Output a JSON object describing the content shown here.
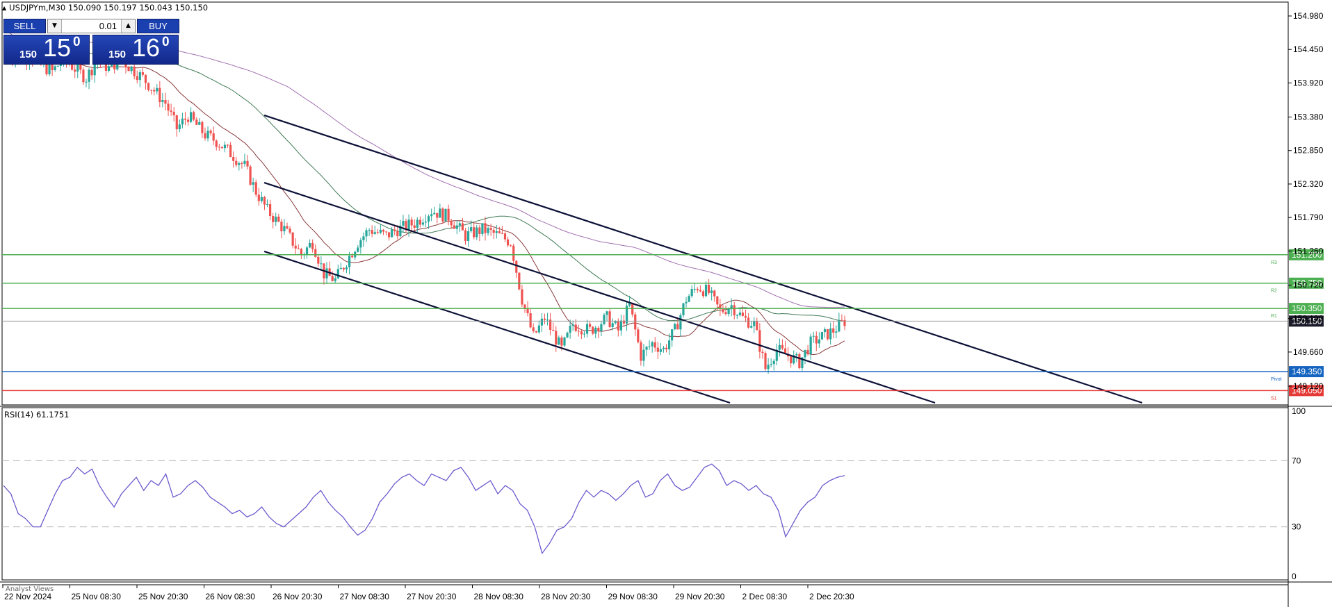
{
  "header": {
    "symbol_line": "USDJPYm,M30  150.090 150.197 150.043 150.150"
  },
  "trade_panel": {
    "sell_label": "SELL",
    "buy_label": "BUY",
    "lot_value": "0.01",
    "bid": {
      "small": "150",
      "big": "15",
      "sup": "0"
    },
    "ask": {
      "small": "150",
      "big": "16",
      "sup": "0"
    }
  },
  "rsi": {
    "label": "RSI(14) 61.1751",
    "levels": {
      "upper": "70",
      "lower": "30"
    },
    "scale": [
      "100",
      "70",
      "30",
      "0"
    ]
  },
  "footer": {
    "analyst_label": "Analyst Views"
  },
  "colors": {
    "bull": "#26a69a",
    "bear": "#ef5350",
    "resistance": "#4caf50",
    "pivot": "#1565c0",
    "support": "#e53935",
    "channel": "#0d1137",
    "rsi_line": "#6a5acd"
  },
  "chart_data": {
    "type": "line",
    "symbol": "USDJPYm",
    "timeframe": "M30",
    "ohlc": {
      "open": 150.09,
      "high": 150.197,
      "low": 150.043,
      "close": 150.15
    },
    "price_axis": [
      "154.980",
      "154.450",
      "153.920",
      "153.380",
      "152.850",
      "152.320",
      "151.790",
      "151.260",
      "150.720",
      "150.190",
      "149.660",
      "149.120"
    ],
    "x_labels": [
      "22 Nov 2024",
      "25 Nov 08:30",
      "25 Nov 20:30",
      "26 Nov 08:30",
      "26 Nov 20:30",
      "27 Nov 08:30",
      "27 Nov 20:30",
      "28 Nov 08:30",
      "28 Nov 20:30",
      "29 Nov 08:30",
      "29 Nov 20:30",
      "2 Dec 08:30",
      "2 Dec 20:30"
    ],
    "ylim": [
      149.0,
      155.1
    ],
    "levels": [
      {
        "name": "R3",
        "price": "151.200",
        "color": "#4caf50"
      },
      {
        "name": "R2",
        "price": "150.750",
        "color": "#4caf50"
      },
      {
        "name": "R1",
        "price": "150.350",
        "color": "#4caf50"
      },
      {
        "name": "Pivot",
        "price": "149.350",
        "color": "#1565c0"
      },
      {
        "name": "S1",
        "price": "149.050",
        "color": "#e53935"
      }
    ],
    "current_price": "150.150",
    "close_path": [
      [
        0,
        154.4
      ],
      [
        4,
        154.3
      ],
      [
        8,
        154.35
      ],
      [
        12,
        154.2
      ],
      [
        16,
        154.1
      ],
      [
        20,
        154.3
      ],
      [
        28,
        154.0
      ],
      [
        32,
        154.3
      ],
      [
        36,
        154.15
      ],
      [
        40,
        154.3
      ],
      [
        48,
        154.0
      ],
      [
        52,
        153.8
      ],
      [
        56,
        153.6
      ],
      [
        60,
        153.2
      ],
      [
        64,
        153.4
      ],
      [
        70,
        153.1
      ],
      [
        74,
        153.0
      ],
      [
        78,
        152.85
      ],
      [
        84,
        152.6
      ],
      [
        88,
        152.2
      ],
      [
        92,
        151.9
      ],
      [
        98,
        151.6
      ],
      [
        104,
        151.2
      ],
      [
        108,
        151.4
      ],
      [
        112,
        150.9
      ],
      [
        116,
        150.8
      ],
      [
        120,
        151.1
      ],
      [
        124,
        151.4
      ],
      [
        128,
        151.6
      ],
      [
        134,
        151.5
      ],
      [
        138,
        151.6
      ],
      [
        144,
        151.7
      ],
      [
        150,
        151.9
      ],
      [
        156,
        151.8
      ],
      [
        162,
        151.5
      ],
      [
        168,
        151.6
      ],
      [
        174,
        151.5
      ],
      [
        178,
        151.4
      ],
      [
        182,
        150.5
      ],
      [
        186,
        149.9
      ],
      [
        190,
        150.2
      ],
      [
        196,
        149.7
      ],
      [
        200,
        150.1
      ],
      [
        206,
        150.0
      ],
      [
        212,
        150.2
      ],
      [
        216,
        150.0
      ],
      [
        220,
        150.4
      ],
      [
        224,
        149.6
      ],
      [
        228,
        149.8
      ],
      [
        232,
        149.7
      ],
      [
        236,
        150.0
      ],
      [
        240,
        150.5
      ],
      [
        244,
        150.7
      ],
      [
        248,
        150.6
      ],
      [
        252,
        150.3
      ],
      [
        256,
        150.4
      ],
      [
        260,
        150.2
      ],
      [
        264,
        150.1
      ],
      [
        268,
        149.4
      ],
      [
        272,
        149.7
      ],
      [
        276,
        149.6
      ],
      [
        280,
        149.5
      ],
      [
        284,
        149.8
      ],
      [
        288,
        149.9
      ],
      [
        292,
        150.0
      ],
      [
        296,
        150.15
      ]
    ],
    "rsi_series": [
      55,
      50,
      38,
      35,
      30,
      30,
      40,
      50,
      58,
      60,
      66,
      62,
      65,
      55,
      48,
      42,
      50,
      55,
      60,
      52,
      58,
      55,
      62,
      48,
      50,
      55,
      58,
      54,
      48,
      45,
      42,
      38,
      40,
      36,
      38,
      42,
      36,
      32,
      30,
      34,
      38,
      42,
      48,
      52,
      45,
      40,
      36,
      30,
      25,
      28,
      35,
      45,
      50,
      56,
      60,
      62,
      58,
      55,
      62,
      60,
      58,
      64,
      66,
      60,
      52,
      55,
      58,
      50,
      55,
      52,
      44,
      40,
      30,
      14,
      20,
      28,
      30,
      35,
      45,
      52,
      48,
      52,
      50,
      46,
      50,
      55,
      58,
      48,
      50,
      58,
      62,
      55,
      52,
      54,
      60,
      66,
      68,
      64,
      55,
      58,
      56,
      52,
      55,
      50,
      48,
      40,
      24,
      32,
      40,
      45,
      48,
      55,
      58,
      60,
      61
    ]
  }
}
